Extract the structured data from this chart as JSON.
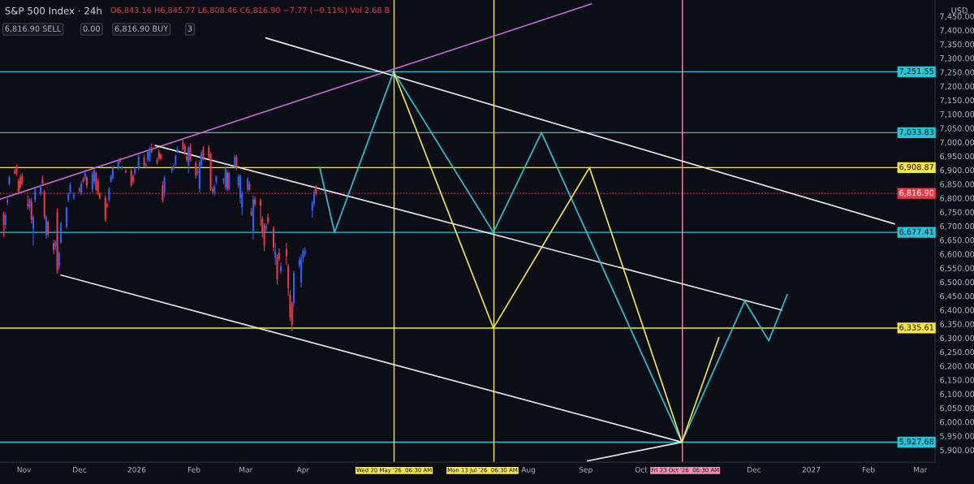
{
  "chart_data": {
    "type": "candlestick",
    "title": "S&P 500 Index · 24h",
    "ylabel": "USD",
    "annotations": [
      "O6,843.16 H6,845.77 L6,808.46 C6,816.90 −7.77 (−0.11%) Vol 2.68 B",
      "6,816.90 SELL",
      "0.00",
      "6,816.90 BUY",
      "3"
    ],
    "colors": [
      "#f23645",
      "#2962ff",
      "#2962ff",
      "#2962ff",
      "#f23645",
      "#f23645",
      "#f23645",
      "#f23645",
      "#f23645",
      "#f23645",
      "#2962ff",
      "#f23645",
      "#2962ff",
      "#2962ff",
      "#2962ff",
      "#f23645",
      "#f23645",
      "#2962ff",
      "#f23645",
      "#f23645",
      "#2962ff",
      "#f23645",
      "#2962ff",
      "#2962ff",
      "#2962ff",
      "#2962ff",
      "#2962ff",
      "#2962ff",
      "#f23645",
      "#2962ff",
      "#f23645",
      "#2962ff",
      "#f23645",
      "#2962ff",
      "#2962ff",
      "#f23645",
      "#f23645",
      "#f23645",
      "#f23645",
      "#f23645",
      "#2962ff",
      "#2962ff",
      "#2962ff",
      "#2962ff",
      "#f23645",
      "#2962ff",
      "#f23645",
      "#f23645",
      "#f23645",
      "#2962ff",
      "#2962ff",
      "#f23645",
      "#2962ff",
      "#2962ff",
      "#2962ff",
      "#f23645",
      "#f23645",
      "#f23645",
      "#f23645",
      "#f23645",
      "#2962ff",
      "#2962ff",
      "#2962ff",
      "#2962ff",
      "#2962ff",
      "#f23645",
      "#f23645",
      "#f23645",
      "#2962ff",
      "#f23645",
      "#f23645",
      "#2962ff",
      "#2962ff",
      "#2962ff",
      "#f23645",
      "#f23645",
      "#f23645",
      "#f23645",
      "#2962ff",
      "#2962ff",
      "#2962ff",
      "#2962ff",
      "#f23645",
      "#2962ff",
      "#2962ff",
      "#f23645",
      "#2962ff",
      "#2962ff",
      "#2962ff",
      "#2962ff",
      "#f23645",
      "#f23645",
      "#2962ff",
      "#f23645",
      "#f23645",
      "#f23645",
      "#f23645",
      "#2962ff",
      "#f23645",
      "#f23645",
      "#2962ff",
      "#f23645",
      "#f23645",
      "#2962ff",
      "#f23645",
      "#f23645",
      "#f23645",
      "#f23645",
      "#2962ff",
      "#2962ff",
      "#2962ff",
      "#2962ff",
      "#2962ff",
      "#2962ff",
      "#2962ff",
      "#f23645"
    ],
    "x": [
      "2025-10-21",
      "2025-10-22",
      "2025-10-23",
      "2025-10-24",
      "2025-10-27",
      "2025-10-28",
      "2025-10-29",
      "2025-10-30",
      "2025-10-31",
      "2025-11-03",
      "2025-11-04",
      "2025-11-05",
      "2025-11-06",
      "2025-11-07",
      "2025-11-10",
      "2025-11-11",
      "2025-11-12",
      "2025-11-13",
      "2025-11-14",
      "2025-11-17",
      "2025-11-18",
      "2025-11-19",
      "2025-11-20",
      "2025-11-21",
      "2025-11-24",
      "2025-11-25",
      "2025-11-26",
      "2025-11-28",
      "2025-12-01",
      "2025-12-02",
      "2025-12-03",
      "2025-12-04",
      "2025-12-05",
      "2025-12-08",
      "2025-12-09",
      "2025-12-10",
      "2025-12-11",
      "2025-12-12",
      "2025-12-15",
      "2025-12-16",
      "2025-12-17",
      "2025-12-18",
      "2025-12-19",
      "2025-12-22",
      "2025-12-23",
      "2025-12-24",
      "2025-12-26",
      "2025-12-29",
      "2025-12-30",
      "2025-12-31",
      "2026-01-02",
      "2026-01-05",
      "2026-01-06",
      "2026-01-07",
      "2026-01-08",
      "2026-01-09",
      "2026-01-12",
      "2026-01-13",
      "2026-01-14",
      "2026-01-15",
      "2026-01-16",
      "2026-01-20",
      "2026-01-21",
      "2026-01-22",
      "2026-01-23",
      "2026-01-26",
      "2026-01-27",
      "2026-01-28",
      "2026-01-29",
      "2026-01-30",
      "2026-02-02",
      "2026-02-03",
      "2026-02-04",
      "2026-02-05",
      "2026-02-06",
      "2026-02-09",
      "2026-02-10",
      "2026-02-11",
      "2026-02-12",
      "2026-02-13",
      "2026-02-17",
      "2026-02-18",
      "2026-02-19",
      "2026-02-20",
      "2026-02-23",
      "2026-02-24",
      "2026-02-25",
      "2026-02-26",
      "2026-02-27",
      "2026-03-02",
      "2026-03-03",
      "2026-03-04",
      "2026-03-05",
      "2026-03-06",
      "2026-03-09",
      "2026-03-10",
      "2026-03-11",
      "2026-03-12",
      "2026-03-13",
      "2026-03-16",
      "2026-03-17",
      "2026-03-18",
      "2026-03-19",
      "2026-03-20",
      "2026-03-23",
      "2026-03-24",
      "2026-03-25",
      "2026-03-26",
      "2026-03-27",
      "2026-03-30",
      "2026-03-31",
      "2026-04-01",
      "2026-04-02",
      "2026-04-06",
      "2026-04-07",
      "2026-04-08"
    ],
    "ohlc": [
      [
        6743,
        6752,
        6659,
        6702
      ],
      [
        6705,
        6750,
        6690,
        6740
      ],
      [
        6784,
        6800,
        6775,
        6793
      ],
      [
        6851,
        6880,
        6845,
        6874
      ],
      [
        6897,
        6905,
        6885,
        6889
      ],
      [
        6912,
        6920,
        6880,
        6889
      ],
      [
        6862,
        6870,
        6815,
        6822
      ],
      [
        6874,
        6885,
        6830,
        6839
      ],
      [
        6880,
        6890,
        6845,
        6851
      ],
      [
        6778,
        6810,
        6760,
        6772
      ],
      [
        6766,
        6800,
        6755,
        6795
      ],
      [
        6787,
        6800,
        6710,
        6723
      ],
      [
        6691,
        6740,
        6630,
        6732
      ],
      [
        6793,
        6835,
        6785,
        6830
      ],
      [
        6816,
        6850,
        6810,
        6845
      ],
      [
        6868,
        6880,
        6845,
        6851
      ],
      [
        6822,
        6830,
        6725,
        6734
      ],
      [
        6667,
        6740,
        6655,
        6734
      ],
      [
        6714,
        6720,
        6660,
        6670
      ],
      [
        6638,
        6650,
        6600,
        6615
      ],
      [
        6627,
        6650,
        6615,
        6644
      ],
      [
        6749,
        6763,
        6530,
        6539
      ],
      [
        6557,
        6610,
        6545,
        6603
      ],
      [
        6641,
        6715,
        6635,
        6708
      ],
      [
        6699,
        6770,
        6690,
        6766
      ],
      [
        6793,
        6820,
        6785,
        6813
      ],
      [
        6822,
        6855,
        6815,
        6848
      ],
      [
        6801,
        6820,
        6795,
        6813
      ],
      [
        6833,
        6840,
        6820,
        6827
      ],
      [
        6816,
        6860,
        6810,
        6851
      ],
      [
        6865,
        6875,
        6855,
        6860
      ],
      [
        6868,
        6895,
        6860,
        6889
      ],
      [
        6874,
        6880,
        6835,
        6845
      ],
      [
        6830,
        6895,
        6820,
        6886
      ],
      [
        6860,
        6905,
        6850,
        6900
      ],
      [
        6889,
        6895,
        6825,
        6830
      ],
      [
        6860,
        6870,
        6810,
        6816
      ],
      [
        6816,
        6820,
        6795,
        6801
      ],
      [
        6801,
        6810,
        6715,
        6723
      ],
      [
        6778,
        6785,
        6765,
        6772
      ],
      [
        6793,
        6840,
        6785,
        6833
      ],
      [
        6860,
        6885,
        6855,
        6877
      ],
      [
        6871,
        6915,
        6865,
        6909
      ],
      [
        6906,
        6940,
        6900,
        6935
      ],
      [
        6935,
        6945,
        6925,
        6929
      ],
      [
        6906,
        6915,
        6900,
        6912
      ],
      [
        6897,
        6905,
        6890,
        6891
      ],
      [
        6897,
        6905,
        6840,
        6845
      ],
      [
        6877,
        6885,
        6850,
        6860
      ],
      [
        6889,
        6910,
        6880,
        6903
      ],
      [
        6906,
        6955,
        6900,
        6947
      ],
      [
        6944,
        6955,
        6910,
        6918
      ],
      [
        6912,
        6925,
        6905,
        6921
      ],
      [
        6935,
        6970,
        6930,
        6964
      ],
      [
        6935,
        6985,
        6930,
        6976
      ],
      [
        6976,
        6995,
        6960,
        6964
      ],
      [
        6935,
        6945,
        6920,
        6926
      ],
      [
        6964,
        6975,
        6935,
        6941
      ],
      [
        6955,
        6960,
        6935,
        6941
      ],
      [
        6845,
        6860,
        6785,
        6793
      ],
      [
        6816,
        6880,
        6805,
        6874
      ],
      [
        6897,
        6912,
        6890,
        6906
      ],
      [
        6906,
        6920,
        6900,
        6915
      ],
      [
        6921,
        6955,
        6915,
        6950
      ],
      [
        6964,
        6985,
        6960,
        6976
      ],
      [
        6999,
        7010,
        6970,
        6976
      ],
      [
        6985,
        6995,
        6955,
        6964
      ],
      [
        6947,
        6955,
        6930,
        6938
      ],
      [
        6918,
        6985,
        6890,
        6979
      ],
      [
        6985,
        6995,
        6930,
        6935
      ],
      [
        6926,
        6935,
        6870,
        6880
      ],
      [
        6890,
        6905,
        6880,
        6895
      ],
      [
        6833,
        6935,
        6820,
        6929
      ],
      [
        6918,
        6970,
        6910,
        6961
      ],
      [
        6973,
        6985,
        6935,
        6941
      ],
      [
        6982,
        6990,
        6940,
        6947
      ],
      [
        6958,
        6965,
        6825,
        6833
      ],
      [
        6833,
        6840,
        6815,
        6825
      ],
      [
        6819,
        6850,
        6810,
        6842
      ],
      [
        6860,
        6880,
        6850,
        6877
      ],
      [
        6863,
        6872,
        6850,
        6868
      ],
      [
        6839,
        6915,
        6830,
        6906
      ],
      [
        6891,
        6900,
        6825,
        6833
      ],
      [
        6833,
        6895,
        6825,
        6889
      ],
      [
        6915,
        6955,
        6905,
        6947
      ],
      [
        6947,
        6955,
        6900,
        6906
      ],
      [
        6845,
        6885,
        6835,
        6877
      ],
      [
        6801,
        6885,
        6780,
        6880
      ],
      [
        6766,
        6825,
        6740,
        6816
      ],
      [
        6830,
        6875,
        6820,
        6868
      ],
      [
        6851,
        6860,
        6825,
        6830
      ],
      [
        6752,
        6765,
        6735,
        6740
      ],
      [
        6682,
        6810,
        6650,
        6795
      ],
      [
        6795,
        6805,
        6770,
        6778
      ],
      [
        6793,
        6800,
        6700,
        6772
      ],
      [
        6726,
        6735,
        6660,
        6673
      ],
      [
        6702,
        6710,
        6610,
        6630
      ],
      [
        6688,
        6710,
        6680,
        6702
      ],
      [
        6731,
        6745,
        6705,
        6714
      ],
      [
        6691,
        6700,
        6610,
        6624
      ],
      [
        6586,
        6640,
        6560,
        6609
      ],
      [
        6589,
        6600,
        6490,
        6510
      ],
      [
        6603,
        6620,
        6575,
        6583
      ],
      [
        6539,
        6570,
        6530,
        6557
      ],
      [
        6618,
        6640,
        6560,
        6592
      ],
      [
        6557,
        6565,
        6450,
        6478
      ],
      [
        6455,
        6470,
        6360,
        6374
      ],
      [
        6423,
        6430,
        6324,
        6347
      ],
      [
        6423,
        6540,
        6410,
        6531
      ],
      [
        6560,
        6590,
        6550,
        6580
      ],
      [
        6499,
        6600,
        6480,
        6586
      ],
      [
        6586,
        6620,
        6570,
        6612
      ],
      [
        6600,
        6625,
        6590,
        6615
      ],
      [
        6755,
        6790,
        6730,
        6784
      ],
      [
        6781,
        6830,
        6770,
        6822
      ],
      [
        6843.16,
        6845.77,
        6808.46,
        6816.9
      ]
    ],
    "series": [
      {
        "type": "line",
        "color": "#c766d8",
        "x": [
          "2025-10-19",
          "2026-09-04"
        ],
        "values": [
          6796,
          7494
        ]
      },
      {
        "type": "line",
        "color": "#e6e6e6",
        "x": [
          "2026-03-12",
          "2027-02-15"
        ],
        "values": [
          7372,
          6708
        ]
      },
      {
        "type": "line",
        "color": "#e6e6e6",
        "x": [
          "2026-01-11",
          "2026-12-16"
        ],
        "values": [
          6988,
          6400
        ]
      },
      {
        "type": "line",
        "color": "#e6e6e6",
        "x": [
          "2025-11-21",
          "2026-10-23"
        ],
        "values": [
          6525,
          5928
        ]
      },
      {
        "type": "line",
        "color": "#e6e6e6",
        "x": [
          "2026-09-02",
          "2026-10-23"
        ],
        "values": [
          5861,
          5927.68
        ]
      },
      {
        "type": "line",
        "color": "#26c6da",
        "x": [
          "2026-04-10",
          "2026-04-18",
          "2026-05-20",
          "2026-07-13",
          "2026-08-08",
          "2026-10-23",
          "2026-11-26",
          "2026-12-09",
          "2026-12-19"
        ],
        "values": [
          6910,
          6677.41,
          7251.55,
          6677.41,
          7033.83,
          5927.68,
          6432,
          6290,
          6455
        ]
      },
      {
        "type": "line",
        "color": "#f5e642",
        "x": [
          "2026-05-20",
          "2026-07-13",
          "2026-09-03",
          "2026-10-23",
          "2026-11-12"
        ],
        "values": [
          7251.55,
          6335.61,
          6908.87,
          5927.68,
          6301
        ]
      }
    ],
    "ref_lines": [
      {
        "axis": "y",
        "value": 7251.55,
        "label": "7,251.55",
        "color": "#26c6da"
      },
      {
        "axis": "y",
        "value": 7033.83,
        "label": "7,033.83",
        "color": "#26c6da"
      },
      {
        "axis": "y",
        "value": 6908.87,
        "label": "6,908.87",
        "color": "#f5e642"
      },
      {
        "axis": "y",
        "value": 6816.9,
        "label": "6,816.90",
        "color": "#f23645",
        "line_style": "dotted"
      },
      {
        "axis": "y",
        "value": 6677.41,
        "label": "6,677.41",
        "color": "#26c6da"
      },
      {
        "axis": "y",
        "value": 6335.61,
        "label": "6,335.61",
        "color": "#f5e642"
      },
      {
        "axis": "y",
        "value": 5927.68,
        "label": "5,927.68",
        "color": "#26c6da"
      },
      {
        "axis": "x",
        "value": "2026-05-20T06:30",
        "label": "Wed 20 May '26  06:30 AM",
        "color": "#f5e642"
      },
      {
        "axis": "x",
        "value": "2026-07-13T06:30",
        "label": "Mon 13 Jul '26  06:30 AM",
        "color": "#f5e642"
      },
      {
        "axis": "x",
        "value": "2026-10-23T06:30",
        "label": "Fri 23 Oct '26  06:30 AM",
        "color": "#f48fb1"
      }
    ],
    "xlim": [
      "2025-10-19",
      "2027-03-09"
    ],
    "xticks": [
      {
        "value": "2025-11-01",
        "label": "Nov"
      },
      {
        "value": "2025-12-01",
        "label": "Dec"
      },
      {
        "value": "2026-01-01",
        "label": "2026"
      },
      {
        "value": "2026-02-01",
        "label": "Feb"
      },
      {
        "value": "2026-03-01",
        "label": "Mar"
      },
      {
        "value": "2026-04-01",
        "label": "Apr"
      },
      {
        "value": "2026-08-01",
        "label": "Aug"
      },
      {
        "value": "2026-09-01",
        "label": "Sep"
      },
      {
        "value": "2026-10-01",
        "label": "Oct"
      },
      {
        "value": "2026-12-01",
        "label": "Dec"
      },
      {
        "value": "2027-01-01",
        "label": "2027"
      },
      {
        "value": "2027-02-01",
        "label": "Feb"
      },
      {
        "value": "2027-03-01",
        "label": "Mar"
      }
    ],
    "ylim": [
      5856,
      7508
    ],
    "yticks": [
      {
        "value": 5900,
        "label": "5,900.00"
      },
      {
        "value": 5950,
        "label": "5,950.00"
      },
      {
        "value": 6000,
        "label": "6,000.00"
      },
      {
        "value": 6050,
        "label": "6,050.00"
      },
      {
        "value": 6100,
        "label": "6,100.00"
      },
      {
        "value": 6150,
        "label": "6,150.00"
      },
      {
        "value": 6200,
        "label": "6,200.00"
      },
      {
        "value": 6250,
        "label": "6,250.00"
      },
      {
        "value": 6300,
        "label": "6,300.00"
      },
      {
        "value": 6350,
        "label": "6,350.00"
      },
      {
        "value": 6400,
        "label": "6,400.00"
      },
      {
        "value": 6450,
        "label": "6,450.00"
      },
      {
        "value": 6500,
        "label": "6,500.00"
      },
      {
        "value": 6550,
        "label": "6,550.00"
      },
      {
        "value": 6600,
        "label": "6,600.00"
      },
      {
        "value": 6650,
        "label": "6,650.00"
      },
      {
        "value": 6700,
        "label": "6,700.00"
      },
      {
        "value": 6750,
        "label": "6,750.00"
      },
      {
        "value": 6800,
        "label": "6,800.00"
      },
      {
        "value": 6850,
        "label": "6,850.00"
      },
      {
        "value": 6900,
        "label": "6,900.00"
      },
      {
        "value": 6950,
        "label": "6,950.00"
      },
      {
        "value": 7000,
        "label": "7,000.00"
      },
      {
        "value": 7050,
        "label": "7,050.00"
      },
      {
        "value": 7100,
        "label": "7,100.00"
      },
      {
        "value": 7150,
        "label": "7,150.00"
      },
      {
        "value": 7200,
        "label": "7,200.00"
      },
      {
        "value": 7250,
        "label": "7,250.00"
      },
      {
        "value": 7300,
        "label": "7,300.00"
      },
      {
        "value": 7350,
        "label": "7,350.00"
      },
      {
        "value": 7400,
        "label": "7,400.00"
      },
      {
        "value": 7450,
        "label": "7,450.00"
      }
    ]
  }
}
